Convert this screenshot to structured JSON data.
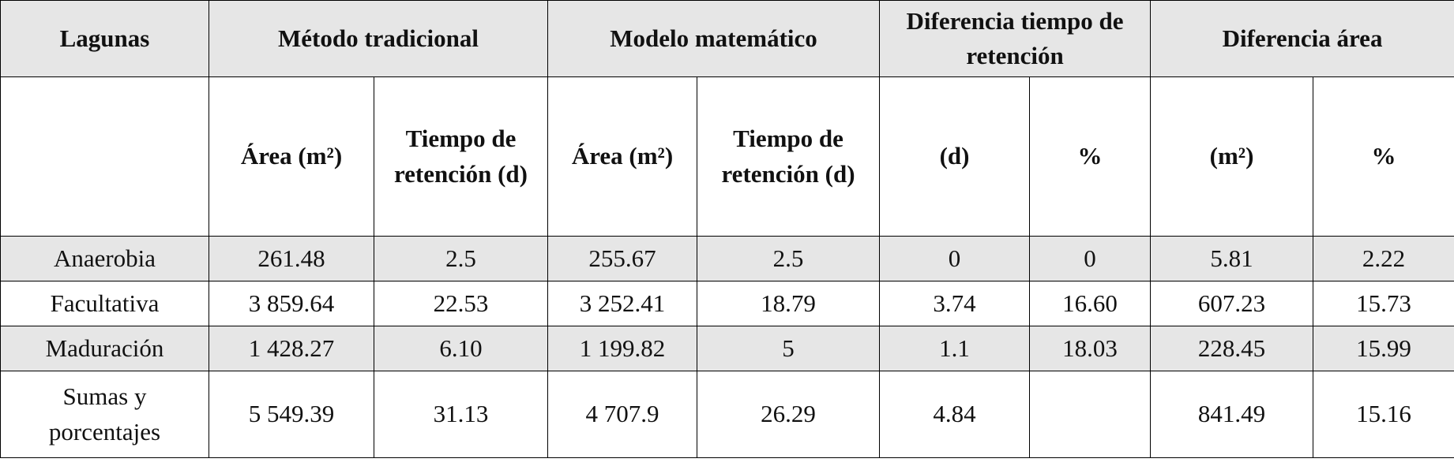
{
  "table": {
    "group_headers": [
      "Lagunas",
      "Método tradicional",
      "Modelo matemático",
      "Diferencia tiempo de retención",
      "Diferencia área"
    ],
    "sub_headers": [
      null,
      "Área (m²)",
      "Tiempo de retención (d)",
      "Área (m²)",
      "Tiempo de retención (d)",
      "(d)",
      "%",
      "(m²)",
      "%"
    ],
    "rows": [
      [
        "Anaerobia",
        "261.48",
        "2.5",
        "255.67",
        "2.5",
        "0",
        "0",
        "5.81",
        "2.22"
      ],
      [
        "Facultativa",
        "3 859.64",
        "22.53",
        "3 252.41",
        "18.79",
        "3.74",
        "16.60",
        "607.23",
        "15.73"
      ],
      [
        "Maduración",
        "1 428.27",
        "6.10",
        "1 199.82",
        "5",
        "1.1",
        "18.03",
        "228.45",
        "15.99"
      ],
      [
        "Sumas y porcentajes",
        "5 549.39",
        "31.13",
        "4 707.9",
        "26.29",
        "4.84",
        null,
        "841.49",
        "15.16"
      ]
    ]
  }
}
